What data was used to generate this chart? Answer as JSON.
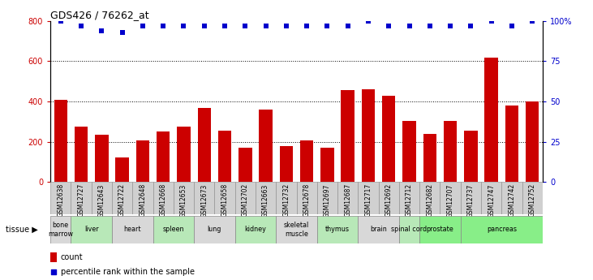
{
  "title": "GDS426 / 76262_at",
  "samples": [
    "GSM12638",
    "GSM12727",
    "GSM12643",
    "GSM12722",
    "GSM12648",
    "GSM12668",
    "GSM12653",
    "GSM12673",
    "GSM12658",
    "GSM12702",
    "GSM12663",
    "GSM12732",
    "GSM12678",
    "GSM12697",
    "GSM12687",
    "GSM12717",
    "GSM12692",
    "GSM12712",
    "GSM12682",
    "GSM12707",
    "GSM12737",
    "GSM12747",
    "GSM12742",
    "GSM12752"
  ],
  "counts": [
    410,
    275,
    235,
    120,
    205,
    250,
    275,
    370,
    255,
    170,
    360,
    180,
    205,
    170,
    455,
    460,
    430,
    305,
    240,
    305,
    255,
    620,
    380,
    400
  ],
  "percentiles": [
    100,
    97,
    94,
    93,
    97,
    97,
    97,
    97,
    97,
    97,
    97,
    97,
    97,
    97,
    97,
    100,
    97,
    97,
    97,
    97,
    97,
    100,
    97,
    100
  ],
  "tissues": [
    {
      "name": "bone\nmarrow",
      "start": 0,
      "end": 1,
      "color": "#d8d8d8"
    },
    {
      "name": "liver",
      "start": 1,
      "end": 3,
      "color": "#b8e8b8"
    },
    {
      "name": "heart",
      "start": 3,
      "end": 5,
      "color": "#d8d8d8"
    },
    {
      "name": "spleen",
      "start": 5,
      "end": 7,
      "color": "#b8e8b8"
    },
    {
      "name": "lung",
      "start": 7,
      "end": 9,
      "color": "#d8d8d8"
    },
    {
      "name": "kidney",
      "start": 9,
      "end": 11,
      "color": "#b8e8b8"
    },
    {
      "name": "skeletal\nmuscle",
      "start": 11,
      "end": 13,
      "color": "#d8d8d8"
    },
    {
      "name": "thymus",
      "start": 13,
      "end": 15,
      "color": "#b8e8b8"
    },
    {
      "name": "brain",
      "start": 15,
      "end": 17,
      "color": "#d8d8d8"
    },
    {
      "name": "spinal cord",
      "start": 17,
      "end": 18,
      "color": "#b8e8b8"
    },
    {
      "name": "prostate",
      "start": 18,
      "end": 20,
      "color": "#88ee88"
    },
    {
      "name": "pancreas",
      "start": 20,
      "end": 24,
      "color": "#88ee88"
    }
  ],
  "bar_color": "#cc0000",
  "dot_color": "#0000cc",
  "ylim_left": [
    0,
    800
  ],
  "ylim_right": [
    0,
    100
  ],
  "yticks_left": [
    0,
    200,
    400,
    600,
    800
  ],
  "yticks_right": [
    0,
    25,
    50,
    75,
    100
  ],
  "ytick_labels_right": [
    "0",
    "25",
    "50",
    "75",
    "100%"
  ],
  "background_color": "#ffffff",
  "title_fontsize": 9,
  "tick_fontsize": 6.5
}
